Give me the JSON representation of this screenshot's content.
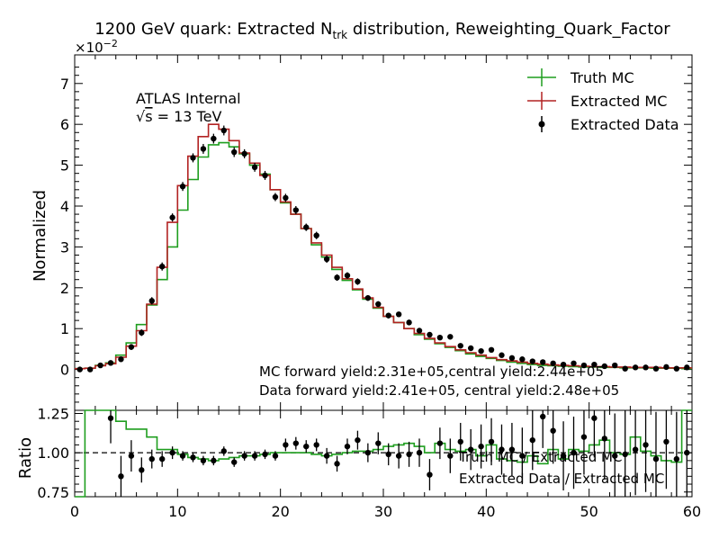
{
  "chart_data": {
    "type": "line",
    "title_main": "1200 GeV quark: Extracted N",
    "title_sub": "trk",
    "title_rest": " distribution, Reweighting_Quark_Factor",
    "atlas_label": "ATLAS Internal",
    "energy_sqrt": "√",
    "energy_s": "s",
    "energy_rest": " =  13 TeV",
    "top_panel": {
      "ylabel": "Normalized",
      "y_exponent_base": "×10",
      "y_exponent_power": "−2",
      "ylim": [
        -1,
        7.7
      ],
      "yticks": [
        "0",
        "1",
        "2",
        "3",
        "4",
        "5",
        "6",
        "7"
      ],
      "legend": [
        "Truth MC",
        "Extracted MC",
        "Extracted Data"
      ],
      "legend_position": "top-right",
      "annotation_line1": "MC forward yield:2.31e+05,central yield:2.44e+05",
      "annotation_line2": "Data forward yield:2.41e+05, central yield:2.48e+05",
      "x": [
        0,
        1,
        2,
        3,
        4,
        5,
        6,
        7,
        8,
        9,
        10,
        11,
        12,
        13,
        14,
        15,
        16,
        17,
        18,
        19,
        20,
        21,
        22,
        23,
        24,
        25,
        26,
        27,
        28,
        29,
        30,
        31,
        32,
        33,
        34,
        35,
        36,
        37,
        38,
        39,
        40,
        41,
        42,
        43,
        44,
        45,
        46,
        47,
        48,
        49,
        50,
        51,
        52,
        53,
        54,
        55,
        56,
        57,
        58,
        59
      ],
      "truth_mc": [
        0.02,
        0.03,
        0.1,
        0.16,
        0.35,
        0.65,
        1.1,
        1.58,
        2.2,
        3.0,
        3.9,
        4.65,
        5.2,
        5.5,
        5.55,
        5.45,
        5.28,
        5.0,
        4.78,
        4.4,
        4.08,
        3.8,
        3.45,
        3.05,
        2.75,
        2.45,
        2.18,
        1.95,
        1.72,
        1.5,
        1.3,
        1.15,
        1.0,
        0.85,
        0.74,
        0.63,
        0.54,
        0.46,
        0.38,
        0.32,
        0.27,
        0.22,
        0.18,
        0.15,
        0.12,
        0.1,
        0.09,
        0.08,
        0.07,
        0.06,
        0.06,
        0.05,
        0.05,
        0.04,
        0.04,
        0.04,
        0.03,
        0.03,
        0.03,
        0.02
      ],
      "extracted_mc": [
        0.02,
        0.03,
        0.09,
        0.14,
        0.3,
        0.57,
        0.95,
        1.6,
        2.5,
        3.6,
        4.5,
        5.22,
        5.7,
        6.0,
        5.88,
        5.6,
        5.3,
        5.05,
        4.75,
        4.4,
        4.1,
        3.8,
        3.45,
        3.1,
        2.8,
        2.5,
        2.22,
        1.97,
        1.75,
        1.52,
        1.3,
        1.15,
        1.0,
        0.88,
        0.76,
        0.65,
        0.56,
        0.48,
        0.41,
        0.35,
        0.29,
        0.24,
        0.21,
        0.18,
        0.15,
        0.13,
        0.11,
        0.1,
        0.09,
        0.08,
        0.07,
        0.07,
        0.06,
        0.06,
        0.05,
        0.05,
        0.05,
        0.04,
        0.04,
        0.04
      ],
      "extracted_data": [
        0.0,
        0.0,
        0.1,
        0.16,
        0.25,
        0.55,
        0.9,
        1.68,
        2.52,
        3.72,
        4.48,
        5.18,
        5.4,
        5.65,
        5.85,
        5.32,
        5.28,
        4.95,
        4.75,
        4.22,
        4.2,
        3.9,
        3.48,
        3.28,
        2.7,
        2.25,
        2.3,
        2.15,
        1.75,
        1.6,
        1.32,
        1.35,
        1.15,
        0.95,
        0.85,
        0.78,
        0.8,
        0.58,
        0.52,
        0.45,
        0.48,
        0.35,
        0.28,
        0.25,
        0.2,
        0.18,
        0.15,
        0.12,
        0.15,
        0.1,
        0.12,
        0.08,
        0.1,
        0.02,
        0.05,
        0.05,
        0.02,
        0.06,
        0.02,
        0.05
      ],
      "extracted_data_err": [
        0.03,
        0.03,
        0.04,
        0.05,
        0.06,
        0.07,
        0.08,
        0.09,
        0.1,
        0.1,
        0.11,
        0.11,
        0.12,
        0.12,
        0.12,
        0.12,
        0.11,
        0.11,
        0.11,
        0.1,
        0.1,
        0.1,
        0.09,
        0.09,
        0.09,
        0.08,
        0.08,
        0.08,
        0.07,
        0.07,
        0.07,
        0.06,
        0.06,
        0.06,
        0.05,
        0.05,
        0.05,
        0.05,
        0.04,
        0.04,
        0.04,
        0.04,
        0.04,
        0.03,
        0.03,
        0.03,
        0.03,
        0.03,
        0.03,
        0.03,
        0.03,
        0.03,
        0.03,
        0.03,
        0.03,
        0.03,
        0.03,
        0.03,
        0.03,
        0.03
      ]
    },
    "ratio_panel": {
      "ylabel": "Ratio",
      "ylim": [
        0.72,
        1.27
      ],
      "yticks": [
        "0.75",
        "1.00",
        "1.25"
      ],
      "reference_line": 1.0,
      "legend": [
        "Truth MC / Extracted MC",
        "Extracted Data / Extracted MC"
      ],
      "truth_over_mc": [
        0.65,
        1.3,
        1.35,
        1.35,
        1.2,
        1.15,
        1.15,
        1.1,
        1.02,
        1.02,
        0.99,
        0.97,
        0.96,
        0.95,
        0.96,
        0.97,
        0.98,
        0.98,
        0.99,
        1.0,
        1.0,
        1.0,
        1.0,
        0.99,
        0.98,
        0.99,
        1.0,
        1.01,
        1.01,
        1.02,
        1.04,
        1.05,
        1.06,
        1.04,
        1.0,
        1.06,
        1.02,
        1.01,
        1.02,
        0.98,
        1.05,
        0.96,
        0.95,
        0.94,
        0.98,
        0.93,
        1.02,
        0.96,
        1.02,
        1.01,
        1.05,
        1.08,
        1.0,
        0.99,
        1.1,
        1.01,
        0.98,
        0.95,
        0.94,
        1.3
      ],
      "data_over_mc": [
        null,
        null,
        null,
        1.22,
        0.85,
        0.98,
        0.89,
        0.96,
        0.96,
        1.0,
        0.98,
        0.97,
        0.95,
        0.95,
        1.01,
        0.94,
        0.98,
        0.98,
        0.99,
        0.98,
        1.05,
        1.06,
        1.04,
        1.05,
        0.98,
        0.93,
        1.04,
        1.08,
        1.0,
        1.06,
        0.99,
        0.98,
        0.99,
        1.0,
        0.86,
        1.06,
        0.98,
        1.07,
        1.02,
        1.04,
        1.07,
        1.02,
        1.02,
        0.98,
        1.08,
        1.23,
        1.14,
        0.98,
        1.0,
        1.1,
        1.22,
        1.09,
        0.98,
        0.99,
        1.02,
        1.05,
        0.96,
        1.07,
        0.96,
        1.0
      ],
      "data_over_mc_err": [
        null,
        null,
        null,
        0.16,
        0.13,
        0.1,
        0.08,
        0.06,
        0.05,
        0.04,
        0.03,
        0.03,
        0.03,
        0.03,
        0.03,
        0.03,
        0.03,
        0.03,
        0.03,
        0.03,
        0.04,
        0.04,
        0.04,
        0.04,
        0.05,
        0.05,
        0.05,
        0.06,
        0.06,
        0.07,
        0.07,
        0.08,
        0.08,
        0.09,
        0.1,
        0.1,
        0.11,
        0.12,
        0.13,
        0.14,
        0.15,
        0.16,
        0.17,
        0.18,
        0.19,
        0.2,
        0.21,
        0.22,
        0.23,
        0.24,
        0.25,
        0.26,
        0.27,
        0.28,
        0.29,
        0.3,
        0.3,
        0.3,
        0.3,
        0.3
      ]
    },
    "xlim": [
      0,
      60
    ],
    "xticks": [
      "0",
      "10",
      "20",
      "30",
      "40",
      "50",
      "60"
    ],
    "colors": {
      "truth_mc": "#1f9e1f",
      "extracted_mc": "#b22222",
      "extracted_data": "#000000"
    }
  }
}
